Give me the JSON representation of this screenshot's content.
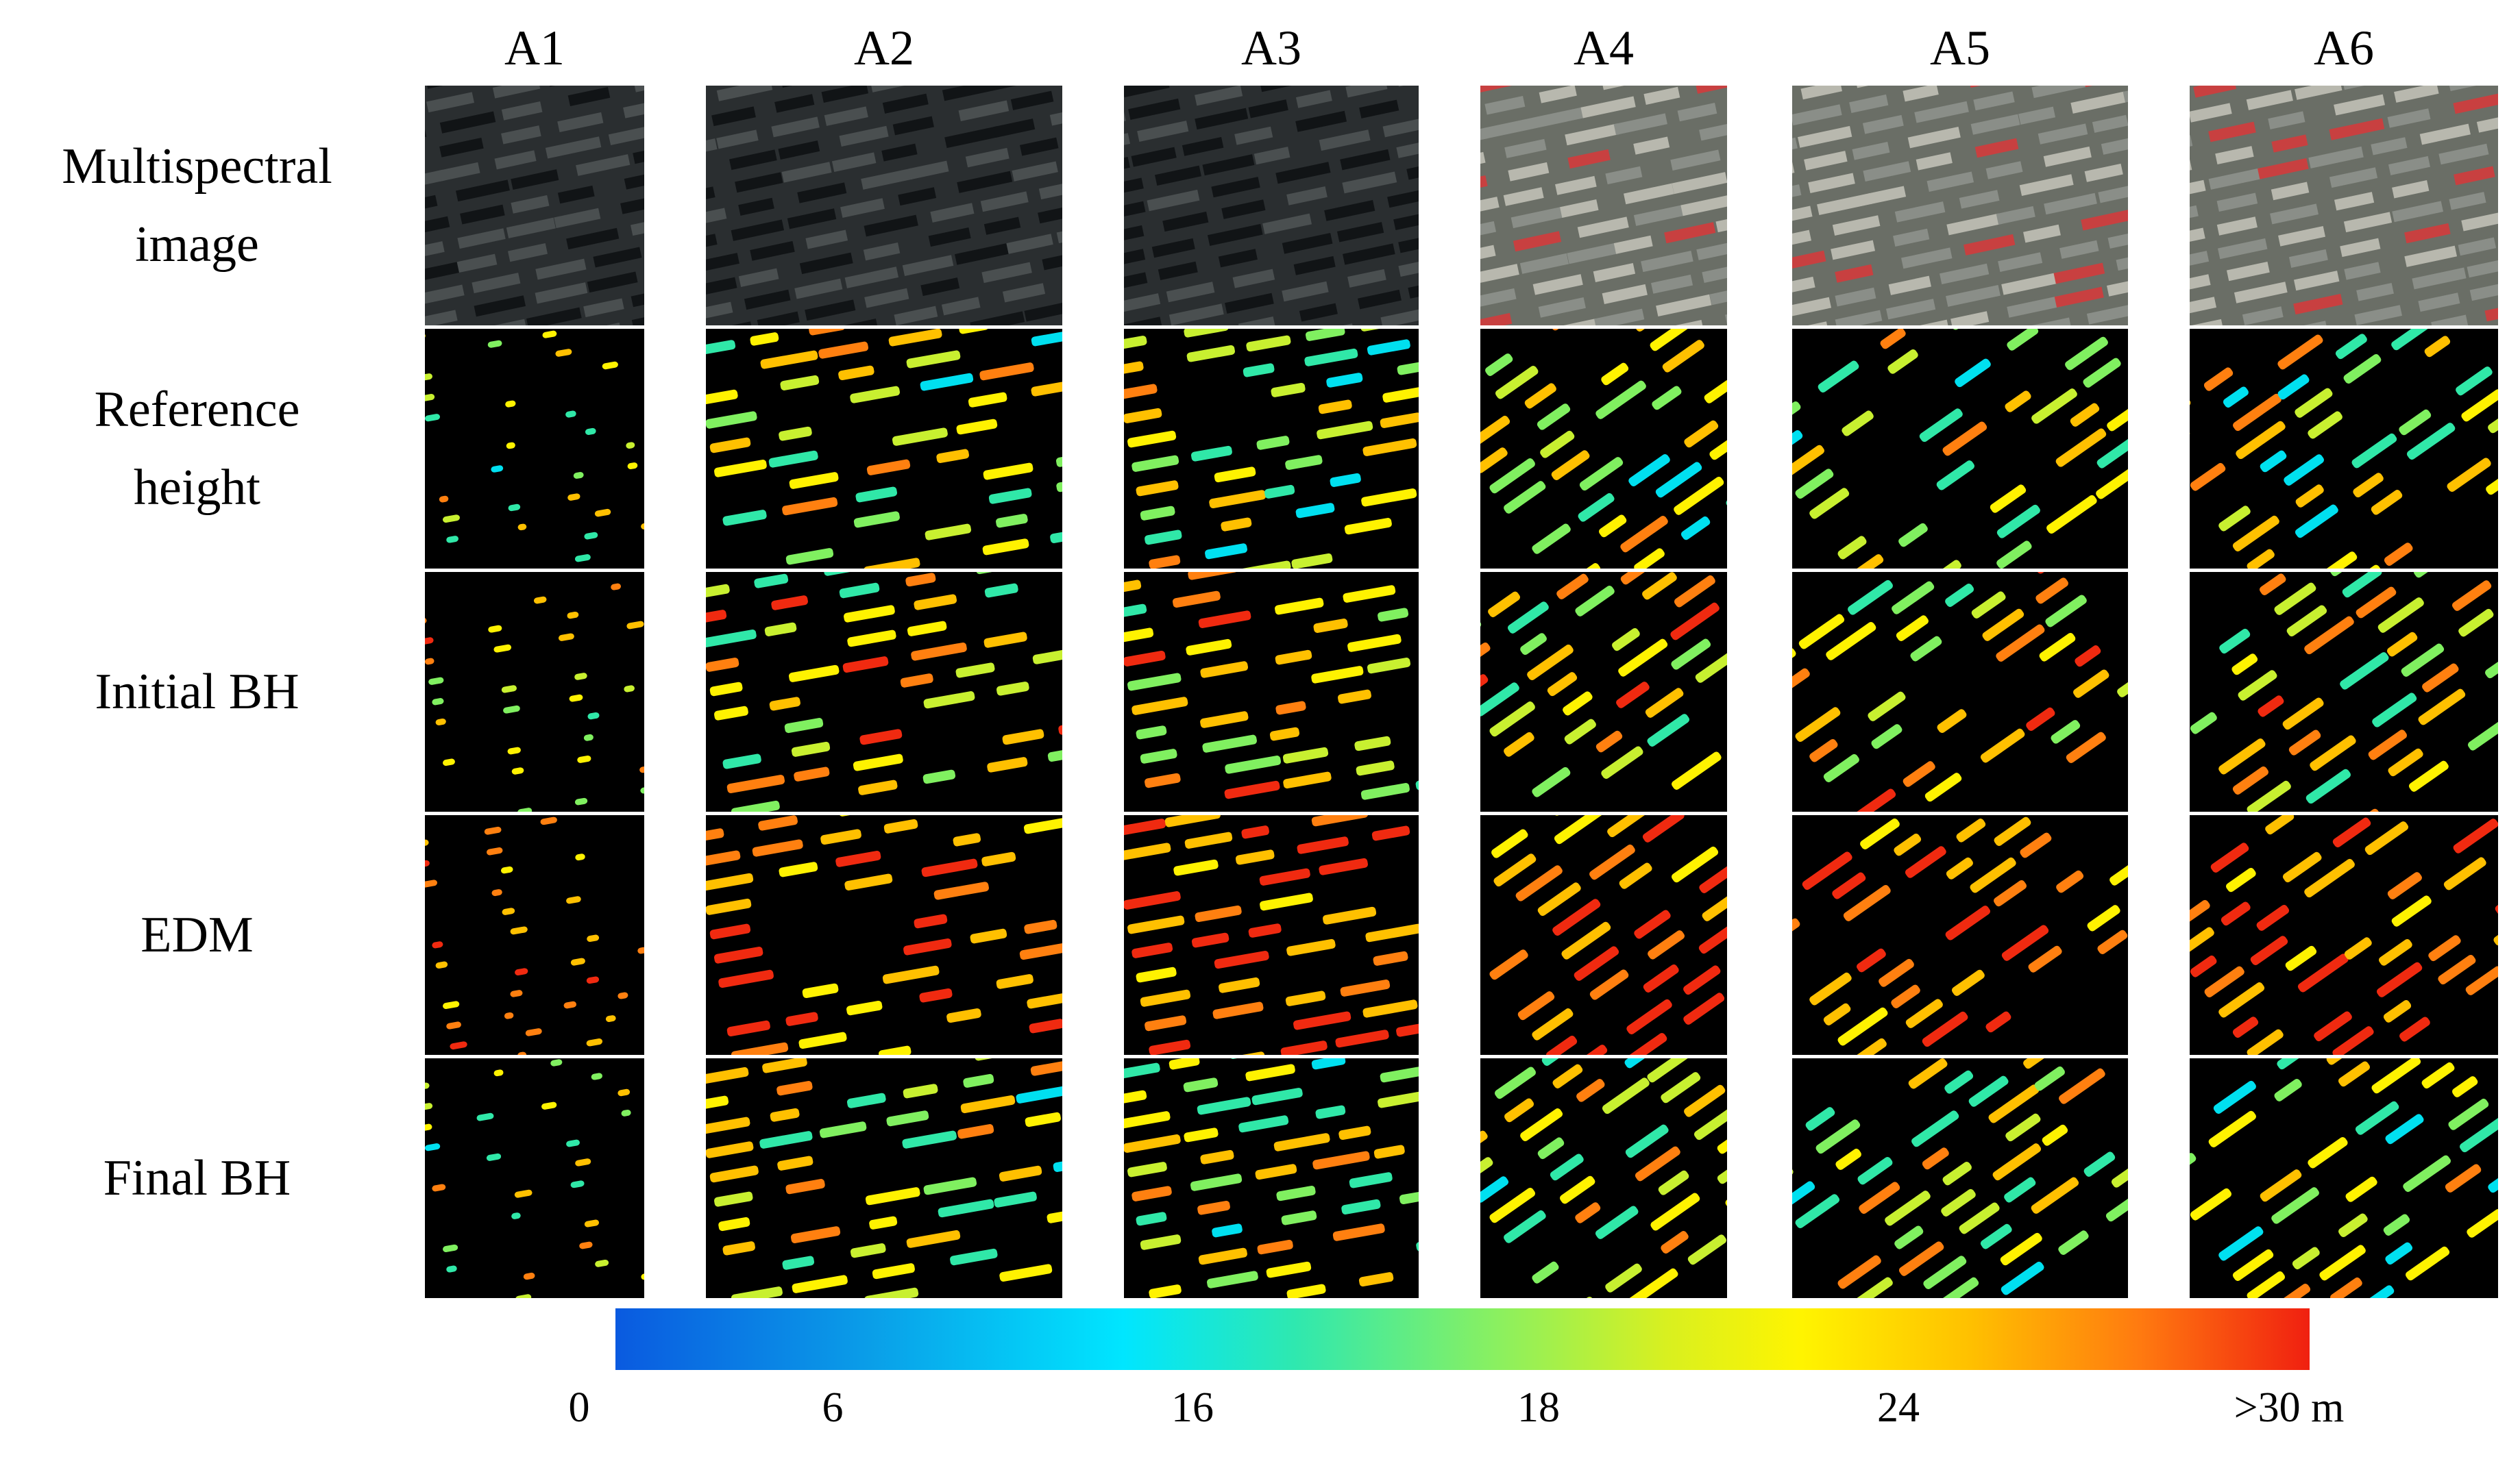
{
  "figure": {
    "columns": [
      "A1",
      "A2",
      "A3",
      "A4",
      "A5",
      "A6"
    ],
    "rows": [
      {
        "line1": "Multispectral",
        "line2": "image",
        "kind": "photo"
      },
      {
        "line1": "Reference",
        "line2": "height",
        "kind": "height"
      },
      {
        "line1": "Initial BH",
        "line2": "",
        "kind": "height"
      },
      {
        "line1": "EDM",
        "line2": "",
        "kind": "height"
      },
      {
        "line1": "Final BH",
        "line2": "",
        "kind": "height"
      }
    ],
    "colorbar": {
      "ticks": [
        "0",
        "6",
        "16",
        "18",
        "24",
        ">30 m"
      ]
    },
    "colors": {
      "panel_bg": "#000000",
      "photo_dark": "#2a2e30",
      "photo_light": "#8a8e88",
      "roof_red": "#c84040"
    }
  }
}
